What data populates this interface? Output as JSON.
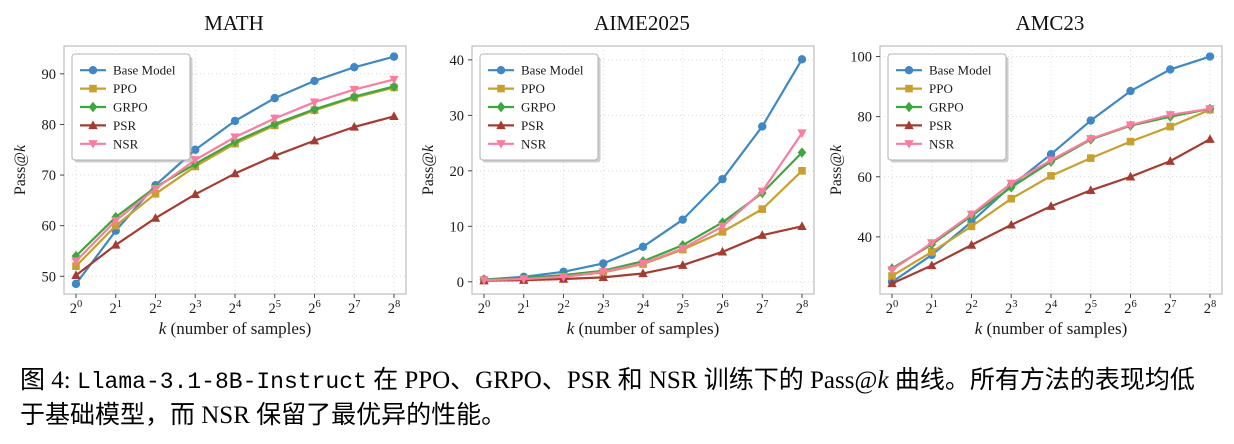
{
  "page": {
    "background": "#ffffff"
  },
  "colors": {
    "base_model": "#3f88c5",
    "ppo": "#c8a02d",
    "grpo": "#3ca73c",
    "psr": "#a53c32",
    "nsr": "#fa7da0",
    "grid": "#d8d8d8",
    "spine": "#bfbfbf",
    "text": "#1a1a1a"
  },
  "chart_data": [
    {
      "type": "line",
      "title": "MATH",
      "xlabel": {
        "italic": "k",
        "rest": " (number of samples)"
      },
      "ylabel": {
        "prefix": "Pass@",
        "italic": "k"
      },
      "x_tick_base": "2",
      "x_tick_exponents": [
        0,
        1,
        2,
        3,
        4,
        5,
        6,
        7,
        8
      ],
      "yticks": [
        50,
        60,
        70,
        80,
        90
      ],
      "ylim": [
        46.5,
        95.5
      ],
      "grid": true,
      "legend_position": "upper-left",
      "series": [
        {
          "name": "Base Model",
          "color": "#3f88c5",
          "marker": "circle",
          "values": [
            48.5,
            59.0,
            68.0,
            75.0,
            80.7,
            85.2,
            88.6,
            91.3,
            93.4
          ]
        },
        {
          "name": "PPO",
          "color": "#c8a02d",
          "marker": "square",
          "values": [
            52.0,
            60.0,
            66.3,
            71.7,
            76.2,
            79.8,
            82.8,
            85.3,
            87.3
          ]
        },
        {
          "name": "GRPO",
          "color": "#3ca73c",
          "marker": "diamond",
          "values": [
            54.0,
            61.7,
            67.6,
            72.2,
            76.6,
            80.1,
            83.0,
            85.5,
            87.5
          ]
        },
        {
          "name": "PSR",
          "color": "#a53c32",
          "marker": "triangle-up",
          "values": [
            50.2,
            56.2,
            61.5,
            66.2,
            70.3,
            73.8,
            76.8,
            79.5,
            81.6
          ]
        },
        {
          "name": "NSR",
          "color": "#fa7da0",
          "marker": "triangle-down",
          "values": [
            53.0,
            61.0,
            67.3,
            73.0,
            77.5,
            81.2,
            84.4,
            86.9,
            88.9
          ]
        }
      ]
    },
    {
      "type": "line",
      "title": "AIME2025",
      "xlabel": {
        "italic": "k",
        "rest": " (number of samples)"
      },
      "ylabel": {
        "prefix": "Pass@",
        "italic": "k"
      },
      "x_tick_base": "2",
      "x_tick_exponents": [
        0,
        1,
        2,
        3,
        4,
        5,
        6,
        7,
        8
      ],
      "yticks": [
        0,
        10,
        20,
        30,
        40
      ],
      "ylim": [
        -2.2,
        42.5
      ],
      "grid": true,
      "legend_position": "upper-left",
      "series": [
        {
          "name": "Base Model",
          "color": "#3f88c5",
          "marker": "circle",
          "values": [
            0.4,
            0.9,
            1.8,
            3.3,
            6.3,
            11.2,
            18.5,
            28.0,
            40.1
          ]
        },
        {
          "name": "PPO",
          "color": "#c8a02d",
          "marker": "square",
          "values": [
            0.3,
            0.5,
            0.9,
            1.7,
            3.2,
            5.8,
            9.0,
            13.1,
            20.0
          ]
        },
        {
          "name": "GRPO",
          "color": "#3ca73c",
          "marker": "diamond",
          "values": [
            0.4,
            0.7,
            1.2,
            2.0,
            3.7,
            6.6,
            10.7,
            16.0,
            23.3
          ]
        },
        {
          "name": "PSR",
          "color": "#a53c32",
          "marker": "triangle-up",
          "values": [
            0.2,
            0.3,
            0.5,
            0.8,
            1.5,
            3.0,
            5.4,
            8.4,
            10.0
          ]
        },
        {
          "name": "NSR",
          "color": "#fa7da0",
          "marker": "triangle-down",
          "values": [
            0.3,
            0.5,
            0.9,
            1.8,
            3.3,
            6.0,
            10.0,
            16.3,
            26.8
          ]
        }
      ]
    },
    {
      "type": "line",
      "title": "AMC23",
      "xlabel": {
        "italic": "k",
        "rest": " (number of samples)"
      },
      "ylabel": {
        "prefix": "Pass@",
        "italic": "k"
      },
      "x_tick_base": "2",
      "x_tick_exponents": [
        0,
        1,
        2,
        3,
        4,
        5,
        6,
        7,
        8
      ],
      "yticks": [
        40,
        60,
        80,
        100
      ],
      "ylim": [
        21,
        103.5
      ],
      "grid": true,
      "legend_position": "upper-left",
      "series": [
        {
          "name": "Base Model",
          "color": "#3f88c5",
          "marker": "circle",
          "values": [
            25.0,
            34.0,
            45.0,
            57.0,
            67.5,
            78.7,
            88.5,
            95.7,
            100.0
          ]
        },
        {
          "name": "PPO",
          "color": "#c8a02d",
          "marker": "square",
          "values": [
            27.0,
            35.0,
            43.5,
            52.7,
            60.3,
            66.2,
            71.7,
            76.7,
            82.3
          ]
        },
        {
          "name": "GRPO",
          "color": "#3ca73c",
          "marker": "diamond",
          "values": [
            29.5,
            37.5,
            47.0,
            56.5,
            65.0,
            72.4,
            77.0,
            80.0,
            82.6
          ]
        },
        {
          "name": "PSR",
          "color": "#a53c32",
          "marker": "triangle-up",
          "values": [
            24.5,
            30.5,
            37.3,
            44.0,
            50.2,
            55.5,
            60.0,
            65.2,
            72.5
          ]
        },
        {
          "name": "NSR",
          "color": "#fa7da0",
          "marker": "triangle-down",
          "values": [
            29.0,
            38.0,
            47.5,
            57.8,
            65.5,
            72.6,
            77.2,
            80.6,
            82.6
          ]
        }
      ]
    }
  ],
  "caption": {
    "prefix": "图 4: ",
    "code": "Llama-3.1-8B-Instruct",
    "middle": " 在 PPO、GRPO、PSR 和 NSR 训练下的 Pass@",
    "italic_k": "k",
    "suffix": " 曲线。所有方法的表现均低于基础模型，而 NSR 保留了最优异的性能。"
  }
}
